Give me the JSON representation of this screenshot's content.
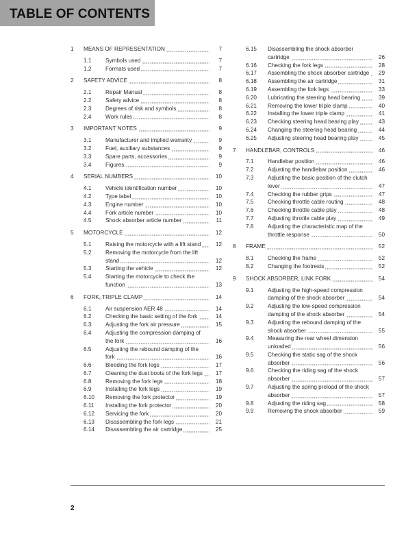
{
  "header": {
    "title": "TABLE OF CONTENTS"
  },
  "footer": {
    "page_number": "2"
  },
  "toc": {
    "left": [
      {
        "level": "sec",
        "num": "1",
        "title": "MEANS OF REPRESENTATION",
        "page": "7"
      },
      {
        "level": "sub",
        "num": "1.1",
        "title": "Symbols used",
        "page": "7"
      },
      {
        "level": "sub",
        "num": "1.2",
        "title": "Formats used",
        "page": "7"
      },
      {
        "level": "sec",
        "num": "2",
        "title": "SAFETY ADVICE",
        "page": "8"
      },
      {
        "level": "sub",
        "num": "2.1",
        "title": "Repair Manual",
        "page": "8"
      },
      {
        "level": "sub",
        "num": "2.2",
        "title": "Safety advice",
        "page": "8"
      },
      {
        "level": "sub",
        "num": "2.3",
        "title": "Degrees of risk and symbols",
        "page": "8"
      },
      {
        "level": "sub",
        "num": "2.4",
        "title": "Work rules",
        "page": "8"
      },
      {
        "level": "sec",
        "num": "3",
        "title": "IMPORTANT NOTES",
        "page": "9"
      },
      {
        "level": "sub",
        "num": "3.1",
        "title": "Manufacturer and implied warranty",
        "page": "9"
      },
      {
        "level": "sub",
        "num": "3.2",
        "title": "Fuel, auxiliary substances",
        "page": "9"
      },
      {
        "level": "sub",
        "num": "3.3",
        "title": "Spare parts, accessories",
        "page": "9"
      },
      {
        "level": "sub",
        "num": "3.4",
        "title": "Figures",
        "page": "9"
      },
      {
        "level": "sec",
        "num": "4",
        "title": "SERIAL NUMBERS",
        "page": "10"
      },
      {
        "level": "sub",
        "num": "4.1",
        "title": "Vehicle identification number",
        "page": "10"
      },
      {
        "level": "sub",
        "num": "4.2",
        "title": "Type label",
        "page": "10"
      },
      {
        "level": "sub",
        "num": "4.3",
        "title": "Engine number",
        "page": "10"
      },
      {
        "level": "sub",
        "num": "4.4",
        "title": "Fork article number",
        "page": "10"
      },
      {
        "level": "sub",
        "num": "4.5",
        "title": "Shock absorber article number",
        "page": "11"
      },
      {
        "level": "sec",
        "num": "5",
        "title": "MOTORCYCLE",
        "page": "12"
      },
      {
        "level": "sub",
        "num": "5.1",
        "title": "Raising the motorcycle with a lift stand",
        "page": "12"
      },
      {
        "level": "sub",
        "num": "5.2",
        "title": "Removing the motorcycle from the lift stand",
        "page": "12"
      },
      {
        "level": "sub",
        "num": "5.3",
        "title": "Starting the vehicle",
        "page": "12"
      },
      {
        "level": "sub",
        "num": "5.4",
        "title": "Starting the motorcycle to check the function",
        "page": "13"
      },
      {
        "level": "sec",
        "num": "6",
        "title": "FORK, TRIPLE CLAMP",
        "page": "14"
      },
      {
        "level": "sub",
        "num": "6.1",
        "title": "Air suspension AER 48",
        "page": "14"
      },
      {
        "level": "sub",
        "num": "6.2",
        "title": "Checking the basic setting of the fork",
        "page": "14"
      },
      {
        "level": "sub",
        "num": "6.3",
        "title": "Adjusting the fork air pressure",
        "page": "15"
      },
      {
        "level": "sub",
        "num": "6.4",
        "title": "Adjusting the compression damping of the fork",
        "page": "16"
      },
      {
        "level": "sub",
        "num": "6.5",
        "title": "Adjusting the rebound damping of the fork",
        "page": "16"
      },
      {
        "level": "sub",
        "num": "6.6",
        "title": "Bleeding the fork legs",
        "page": "17"
      },
      {
        "level": "sub",
        "num": "6.7",
        "title": "Cleaning the dust boots of the fork legs",
        "page": "17"
      },
      {
        "level": "sub",
        "num": "6.8",
        "title": "Removing the fork legs",
        "page": "18"
      },
      {
        "level": "sub",
        "num": "6.9",
        "title": "Installing the fork legs",
        "page": "19"
      },
      {
        "level": "sub",
        "num": "6.10",
        "title": "Removing the fork protector",
        "page": "19"
      },
      {
        "level": "sub",
        "num": "6.11",
        "title": "Installing the fork protector",
        "page": "20"
      },
      {
        "level": "sub",
        "num": "6.12",
        "title": "Servicing the fork",
        "page": "20"
      },
      {
        "level": "sub",
        "num": "6.13",
        "title": "Disassembling the fork legs",
        "page": "21"
      },
      {
        "level": "sub",
        "num": "6.14",
        "title": "Disassembling the air cartridge",
        "page": "25"
      }
    ],
    "right": [
      {
        "level": "sub",
        "num": "6.15",
        "title": "Disassembling the shock absorber cartridge",
        "page": "26"
      },
      {
        "level": "sub",
        "num": "6.16",
        "title": "Checking the fork legs",
        "page": "28"
      },
      {
        "level": "sub",
        "num": "6.17",
        "title": "Assembling the shock absorber cartridge",
        "page": "29"
      },
      {
        "level": "sub",
        "num": "6.18",
        "title": "Assembling the air cartridge",
        "page": "31"
      },
      {
        "level": "sub",
        "num": "6.19",
        "title": "Assembling the fork legs",
        "page": "33"
      },
      {
        "level": "sub",
        "num": "6.20",
        "title": "Lubricating the steering head bearing",
        "page": "39"
      },
      {
        "level": "sub",
        "num": "6.21",
        "title": "Removing the lower triple clamp",
        "page": "40"
      },
      {
        "level": "sub",
        "num": "6.22",
        "title": "Installing the lower triple clamp",
        "page": "41"
      },
      {
        "level": "sub",
        "num": "6.23",
        "title": "Checking steering head bearing play",
        "page": "43"
      },
      {
        "level": "sub",
        "num": "6.24",
        "title": "Changing the steering head bearing",
        "page": "44"
      },
      {
        "level": "sub",
        "num": "6.25",
        "title": "Adjusting steering head bearing play",
        "page": "45"
      },
      {
        "level": "sec",
        "num": "7",
        "title": "HANDLEBAR, CONTROLS",
        "page": "46"
      },
      {
        "level": "sub",
        "num": "7.1",
        "title": "Handlebar position",
        "page": "46"
      },
      {
        "level": "sub",
        "num": "7.2",
        "title": "Adjusting the handlebar position",
        "page": "46"
      },
      {
        "level": "sub",
        "num": "7.3",
        "title": "Adjusting the basic position of the clutch lever",
        "page": "47"
      },
      {
        "level": "sub",
        "num": "7.4",
        "title": "Checking the rubber grips",
        "page": "47"
      },
      {
        "level": "sub",
        "num": "7.5",
        "title": "Checking throttle cable routing",
        "page": "48"
      },
      {
        "level": "sub",
        "num": "7.6",
        "title": "Checking throttle cable play",
        "page": "48"
      },
      {
        "level": "sub",
        "num": "7.7",
        "title": "Adjusting throttle cable play",
        "page": "49"
      },
      {
        "level": "sub",
        "num": "7.8",
        "title": "Adjusting the characteristic map of the throttle response",
        "page": "50"
      },
      {
        "level": "sec",
        "num": "8",
        "title": "FRAME",
        "page": "52"
      },
      {
        "level": "sub",
        "num": "8.1",
        "title": "Checking the frame",
        "page": "52"
      },
      {
        "level": "sub",
        "num": "8.2",
        "title": "Changing the footrests",
        "page": "52"
      },
      {
        "level": "sec",
        "num": "9",
        "title": "SHOCK ABSORBER, LINK FORK",
        "page": "54"
      },
      {
        "level": "sub",
        "num": "9.1",
        "title": "Adjusting the high-speed compression damping of the shock absorber",
        "page": "54"
      },
      {
        "level": "sub",
        "num": "9.2",
        "title": "Adjusting the low-speed compression damping of the shock absorber",
        "page": "54"
      },
      {
        "level": "sub",
        "num": "9.3",
        "title": "Adjusting the rebound damping of the shock absorber",
        "page": "55"
      },
      {
        "level": "sub",
        "num": "9.4",
        "title": "Measuring the rear wheel dimension unloaded",
        "page": "56"
      },
      {
        "level": "sub",
        "num": "9.5",
        "title": "Checking the static sag of the shock absorber",
        "page": "56"
      },
      {
        "level": "sub",
        "num": "9.6",
        "title": "Checking the riding sag of the shock absorber",
        "page": "57"
      },
      {
        "level": "sub",
        "num": "9.7",
        "title": "Adjusting the spring preload of the shock absorber",
        "page": "57"
      },
      {
        "level": "sub",
        "num": "9.8",
        "title": "Adjusting the riding sag",
        "page": "58"
      },
      {
        "level": "sub",
        "num": "9.9",
        "title": "Removing the shock absorber",
        "page": "59"
      }
    ]
  }
}
